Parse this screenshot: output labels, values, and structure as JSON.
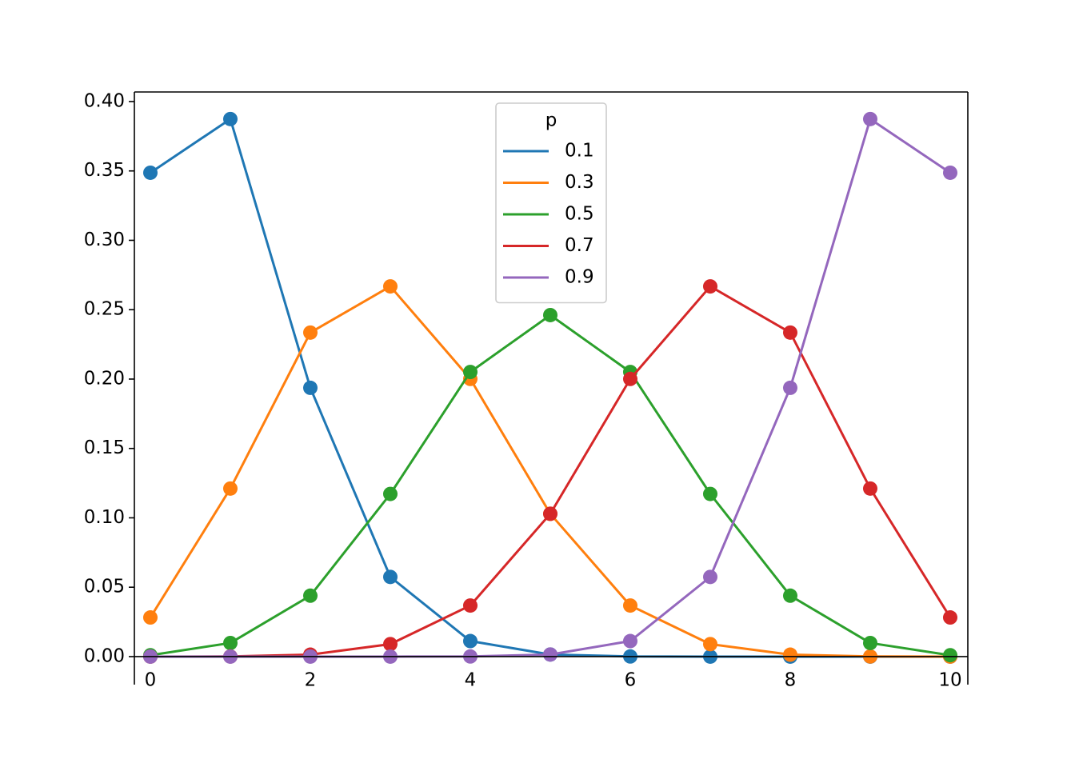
{
  "chart_data": {
    "type": "line",
    "legend_title": "p",
    "legend_position": "upper center",
    "x": [
      0,
      1,
      2,
      3,
      4,
      5,
      6,
      7,
      8,
      9,
      10
    ],
    "series": [
      {
        "name": "0.1",
        "color": "#1f77b4",
        "values": [
          0.3487,
          0.3874,
          0.1937,
          0.0574,
          0.0112,
          0.0015,
          0.0001,
          0.0,
          0.0,
          0.0,
          0.0
        ]
      },
      {
        "name": "0.3",
        "color": "#ff7f0e",
        "values": [
          0.0282,
          0.1211,
          0.2335,
          0.2668,
          0.2001,
          0.1029,
          0.0368,
          0.009,
          0.0014,
          0.0001,
          0.0
        ]
      },
      {
        "name": "0.5",
        "color": "#2ca02c",
        "values": [
          0.001,
          0.0098,
          0.0439,
          0.1172,
          0.2051,
          0.2461,
          0.2051,
          0.1172,
          0.0439,
          0.0098,
          0.001
        ]
      },
      {
        "name": "0.7",
        "color": "#d62728",
        "values": [
          0.0,
          0.0001,
          0.0014,
          0.009,
          0.0368,
          0.1029,
          0.2001,
          0.2668,
          0.2335,
          0.1211,
          0.0282
        ]
      },
      {
        "name": "0.9",
        "color": "#9467bd",
        "values": [
          0.0,
          0.0,
          0.0,
          0.0,
          0.0001,
          0.0015,
          0.0112,
          0.0574,
          0.1937,
          0.3874,
          0.3487
        ]
      }
    ],
    "xlim": [
      -0.2,
      10.22
    ],
    "ylim": [
      -0.0202,
      0.4069
    ],
    "xticks": [
      0,
      2,
      4,
      6,
      8,
      10
    ],
    "yticks": [
      {
        "value": 0,
        "label": "0.00"
      },
      {
        "value": 0.05,
        "label": "0.05"
      },
      {
        "value": 0.1,
        "label": "0.10"
      },
      {
        "value": 0.15,
        "label": "0.15"
      },
      {
        "value": 0.2,
        "label": "0.20"
      },
      {
        "value": 0.25,
        "label": "0.25"
      },
      {
        "value": 0.3,
        "label": "0.30"
      },
      {
        "value": 0.35,
        "label": "0.35"
      },
      {
        "value": 0.4,
        "label": "0.40"
      }
    ],
    "grid": false
  }
}
